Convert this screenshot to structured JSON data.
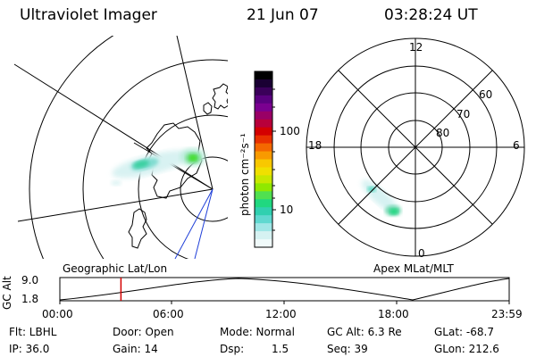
{
  "header": {
    "instrument": "Ultraviolet Imager",
    "date": "21 Jun 07",
    "time": "03:28:24 UT"
  },
  "left_panel": {
    "caption": "Geographic Lat/Lon"
  },
  "right_panel": {
    "caption": "Apex MLat/MLT",
    "mlt_labels": {
      "top": "12",
      "left": "18",
      "right": "6",
      "bottom": "0"
    },
    "lat_labels": [
      "60",
      "70",
      "80"
    ]
  },
  "colorbar": {
    "unit_label": "photon cm⁻²s⁻¹",
    "ticks": [
      "100",
      "10"
    ],
    "colors": [
      "#000000",
      "#1a0033",
      "#3a005a",
      "#5a0080",
      "#7a0090",
      "#990066",
      "#b8003a",
      "#d40000",
      "#e83000",
      "#f46800",
      "#f89a00",
      "#f8c800",
      "#f0e000",
      "#c8e800",
      "#90e800",
      "#50e050",
      "#20d880",
      "#30d0b0",
      "#60d8d0",
      "#a0e6e6",
      "#d6f2f2",
      "#f0fafa"
    ]
  },
  "altitude_plot": {
    "ylabel": "GC Alt",
    "yticks": [
      "9.0",
      "1.8"
    ],
    "xticks": [
      "00:00",
      "06:00",
      "12:00",
      "18:00",
      "23:59"
    ],
    "current_time_fraction": 0.136
  },
  "info": {
    "flt": "Flt: LBHL",
    "ip": "IP: 36.0",
    "door": "Door: Open",
    "gain": "Gain: 14",
    "mode": "Mode: Normal",
    "dsp_label": "Dsp:",
    "dsp_value": "1.5",
    "gc_alt": "GC Alt: 6.3 Re",
    "seq": "Seq: 39",
    "glat": "GLat: -68.7",
    "glon": "GLon: 212.6"
  }
}
